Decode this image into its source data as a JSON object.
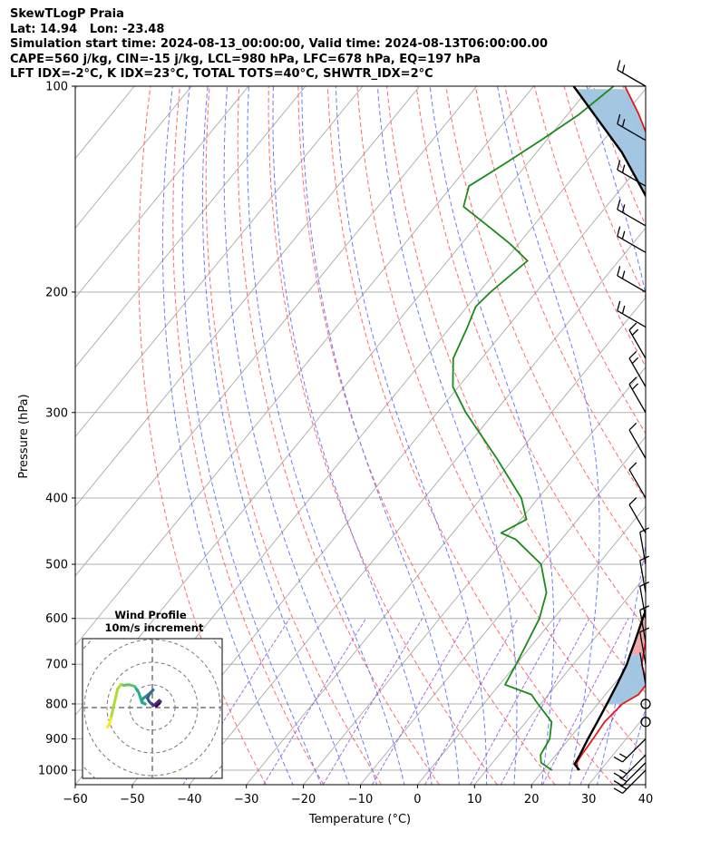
{
  "header": {
    "title": "SkewTLogP Praia",
    "location": "Lat: 14.94   Lon: -23.48",
    "times": "Simulation start time: 2024-08-13_00:00:00, Valid time: 2024-08-13T06:00:00.00",
    "params1": "CAPE=560 j/kg, CIN=-15 j/kg, LCL=980 hPa, LFC=678 hPa, EQ=197 hPa",
    "params2": "LFT IDX=-2°C, K IDX=23°C, TOTAL TOTS=40°C, SHWTR_IDX=2°C"
  },
  "chart_data": [
    {
      "type": "line",
      "subtype": "skew-t log-p",
      "xlabel": "Temperature (°C)",
      "ylabel": "Pressure (hPa)",
      "xlim": [
        -60,
        40
      ],
      "ylim": [
        1050,
        100
      ],
      "x_ticks": [
        "−60",
        "−50",
        "−40",
        "−30",
        "−20",
        "−10",
        "0",
        "10",
        "20",
        "30",
        "40"
      ],
      "y_ticks": [
        "1000",
        "900",
        "800",
        "700",
        "600",
        "500",
        "400",
        "300",
        "200",
        "100"
      ],
      "y_scale": "log",
      "grid": true,
      "colors": {
        "temperature": "#e31a1c",
        "dewpoint": "#1a8a1a",
        "parcel": "#000000",
        "cape_fill": "#f0a3a3",
        "cin_fill": "#9ec4e0",
        "dry_adiabats": "#ff6b6b",
        "moist_adiabats": "#6b7bff",
        "mixing_ratio": "#8b3fcf",
        "isotherms": "#aaaaaa"
      },
      "series": [
        {
          "role": "temperature",
          "points": [
            [
              1000,
              26
            ],
            [
              975,
              24.8
            ],
            [
              950,
              24.5
            ],
            [
              900,
              24.2
            ],
            [
              850,
              23.8
            ],
            [
              800,
              24.3
            ],
            [
              775,
              25.8
            ],
            [
              750,
              25.7
            ],
            [
              725,
              24
            ],
            [
              700,
              22
            ],
            [
              650,
              19.5
            ],
            [
              600,
              16.8
            ],
            [
              550,
              15.5
            ],
            [
              500,
              15.6
            ],
            [
              450,
              14.6
            ],
            [
              400,
              10.2
            ],
            [
              350,
              4
            ],
            [
              300,
              -3.5
            ],
            [
              250,
              -13.5
            ],
            [
              200,
              -25
            ],
            [
              175,
              -31.3
            ],
            [
              160,
              -35.5
            ],
            [
              150,
              -40
            ],
            [
              140,
              -44
            ],
            [
              130,
              -47.5
            ],
            [
              120,
              -52
            ],
            [
              110,
              -57.5
            ],
            [
              100,
              -64
            ]
          ]
        },
        {
          "role": "dewpoint",
          "points": [
            [
              1000,
              21.5
            ],
            [
              975,
              18.5
            ],
            [
              950,
              17.3
            ],
            [
              900,
              16.6
            ],
            [
              850,
              14.5
            ],
            [
              800,
              9.5
            ],
            [
              775,
              7
            ],
            [
              750,
              1
            ],
            [
              725,
              0.5
            ],
            [
              700,
              0
            ],
            [
              650,
              -1.2
            ],
            [
              600,
              -2.5
            ],
            [
              550,
              -5
            ],
            [
              500,
              -10
            ],
            [
              460,
              -18
            ],
            [
              450,
              -21.5
            ],
            [
              430,
              -19
            ],
            [
              400,
              -23
            ],
            [
              350,
              -33
            ],
            [
              300,
              -45
            ],
            [
              275,
              -51
            ],
            [
              250,
              -55
            ],
            [
              225,
              -57
            ],
            [
              210,
              -58.5
            ],
            [
              200,
              -58
            ],
            [
              180,
              -56
            ],
            [
              170,
              -61.5
            ],
            [
              160,
              -68
            ],
            [
              150,
              -75
            ],
            [
              140,
              -77
            ],
            [
              130,
              -74
            ],
            [
              120,
              -71
            ],
            [
              110,
              -68
            ],
            [
              100,
              -66
            ]
          ]
        },
        {
          "role": "parcel",
          "points": [
            [
              1000,
              26.3
            ],
            [
              980,
              24.6
            ],
            [
              950,
              24.2
            ],
            [
              900,
              23.3
            ],
            [
              850,
              22.5
            ],
            [
              800,
              21.6
            ],
            [
              750,
              20.6
            ],
            [
              700,
              19.4
            ],
            [
              678,
              18.6
            ],
            [
              650,
              17.6
            ],
            [
              600,
              15.6
            ],
            [
              550,
              13.6
            ],
            [
              500,
              11.3
            ],
            [
              450,
              8.5
            ],
            [
              400,
              5
            ],
            [
              350,
              0.8
            ],
            [
              300,
              -5
            ],
            [
              250,
              -13.5
            ],
            [
              200,
              -24.5
            ],
            [
              197,
              -25.5
            ],
            [
              175,
              -32
            ],
            [
              150,
              -42
            ],
            [
              125,
              -55
            ],
            [
              100,
              -73
            ]
          ]
        }
      ]
    },
    {
      "type": "line",
      "subtype": "hodograph",
      "title": "Wind Profile",
      "subtitle": "10m/s increment",
      "colormap": "viridis",
      "x": [
        1.5,
        2.5,
        3,
        2.5,
        1.5,
        0.5,
        -0.5,
        -1.2,
        -1.8,
        -1.2,
        -0.3,
        0.3,
        -1,
        -2.5,
        -3.5,
        -4,
        -3.2,
        -2.6,
        -3.8,
        -5,
        -6.5,
        -8.5,
        -10.5,
        -11.5,
        -12.8,
        -13.5,
        -14.5,
        -15.2,
        -15.8,
        -16.5
      ],
      "y": [
        0.5,
        1.5,
        2.2,
        2.6,
        1.6,
        0.8,
        1.5,
        2.3,
        3.4,
        4.6,
        5.8,
        6.5,
        5.2,
        4,
        3.3,
        2.4,
        1.6,
        1.3,
        1.8,
        5.5,
        7.8,
        8.4,
        8.2,
        8.5,
        6.8,
        3.5,
        -0.5,
        -4,
        -6,
        -7.2
      ]
    },
    {
      "type": "wind_barbs",
      "levels_hPa": [
        1000,
        975,
        950,
        900,
        850,
        800,
        750,
        700,
        650,
        600,
        550,
        500,
        450,
        400,
        350,
        300,
        275,
        250,
        225,
        200,
        175,
        160,
        140,
        120,
        100
      ],
      "barbs": [
        {
          "feathers": 2,
          "calm": false
        },
        {
          "feathers": 2,
          "calm": false
        },
        {
          "feathers": 2,
          "calm": false
        },
        {
          "feathers": 2,
          "calm": false
        },
        {
          "feathers": 0,
          "calm": true
        },
        {
          "feathers": 0,
          "calm": true
        },
        {
          "feathers": 0,
          "calm": false
        },
        {
          "feathers": 1,
          "calm": false
        },
        {
          "feathers": 1,
          "calm": false
        },
        {
          "feathers": 1,
          "calm": false
        },
        {
          "feathers": 1,
          "calm": false
        },
        {
          "feathers": 1,
          "calm": false
        },
        {
          "feathers": 1,
          "calm": false
        },
        {
          "feathers": 1,
          "calm": false
        },
        {
          "feathers": 1,
          "calm": false
        },
        {
          "feathers": 2,
          "calm": false
        },
        {
          "feathers": 2,
          "calm": false
        },
        {
          "feathers": 2,
          "calm": false
        },
        {
          "feathers": 2,
          "calm": false
        },
        {
          "feathers": 2,
          "calm": false
        },
        {
          "feathers": 2,
          "calm": false
        },
        {
          "feathers": 2,
          "calm": false
        },
        {
          "feathers": 2,
          "calm": false
        },
        {
          "feathers": 2,
          "calm": false
        },
        {
          "feathers": 2,
          "calm": false
        }
      ]
    }
  ]
}
